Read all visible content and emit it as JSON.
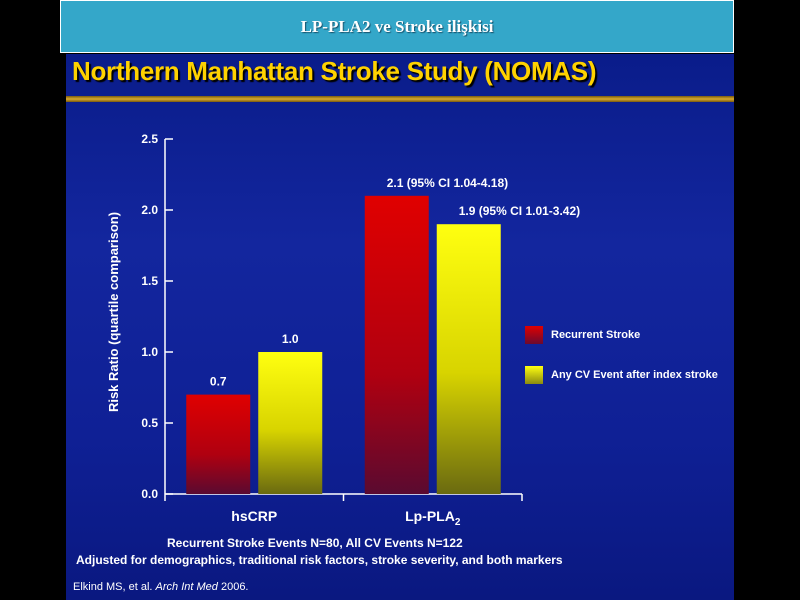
{
  "header": {
    "title": "LP-PLA2 ve Stroke ilişkisi"
  },
  "slide": {
    "title": "Northern Manhattan Stroke Study (NOMAS)"
  },
  "chart_data": {
    "type": "bar",
    "title": "",
    "xlabel": "",
    "ylabel": "Risk Ratio (quartile comparison)",
    "ylim": [
      0,
      2.5
    ],
    "yticks": [
      "0.0",
      "0.5",
      "1.0",
      "1.5",
      "2.0",
      "2.5"
    ],
    "categories": [
      "hsCRP",
      "Lp-PLA2"
    ],
    "category_labels": [
      {
        "main": "hsCRP",
        "sub": ""
      },
      {
        "main": "Lp-PLA",
        "sub": "2"
      }
    ],
    "series": [
      {
        "name": "Recurrent Stroke",
        "values": [
          0.7,
          2.1
        ],
        "color": "#c80000",
        "labels": [
          "0.7",
          "2.1 (95% CI 1.04-4.18)"
        ]
      },
      {
        "name": "Any CV Event after index stroke",
        "values": [
          1.0,
          1.9
        ],
        "color": "#f0f000",
        "labels": [
          "1.0",
          "1.9  (95% CI 1.01-3.42)"
        ]
      }
    ],
    "legend_position": "right",
    "grid": false
  },
  "notes": {
    "events": "Recurrent Stroke Events N=80, All CV Events N=122",
    "adjusted": "Adjusted for demographics, traditional risk factors, stroke severity, and both markers"
  },
  "citation": {
    "authors": "Elkind MS, et al. ",
    "journal": "Arch Int Med",
    "year": " 2006."
  },
  "colors": {
    "header_bg": "#34a7c9",
    "panel_bg": "#13269e",
    "title_color": "#ffd200"
  }
}
